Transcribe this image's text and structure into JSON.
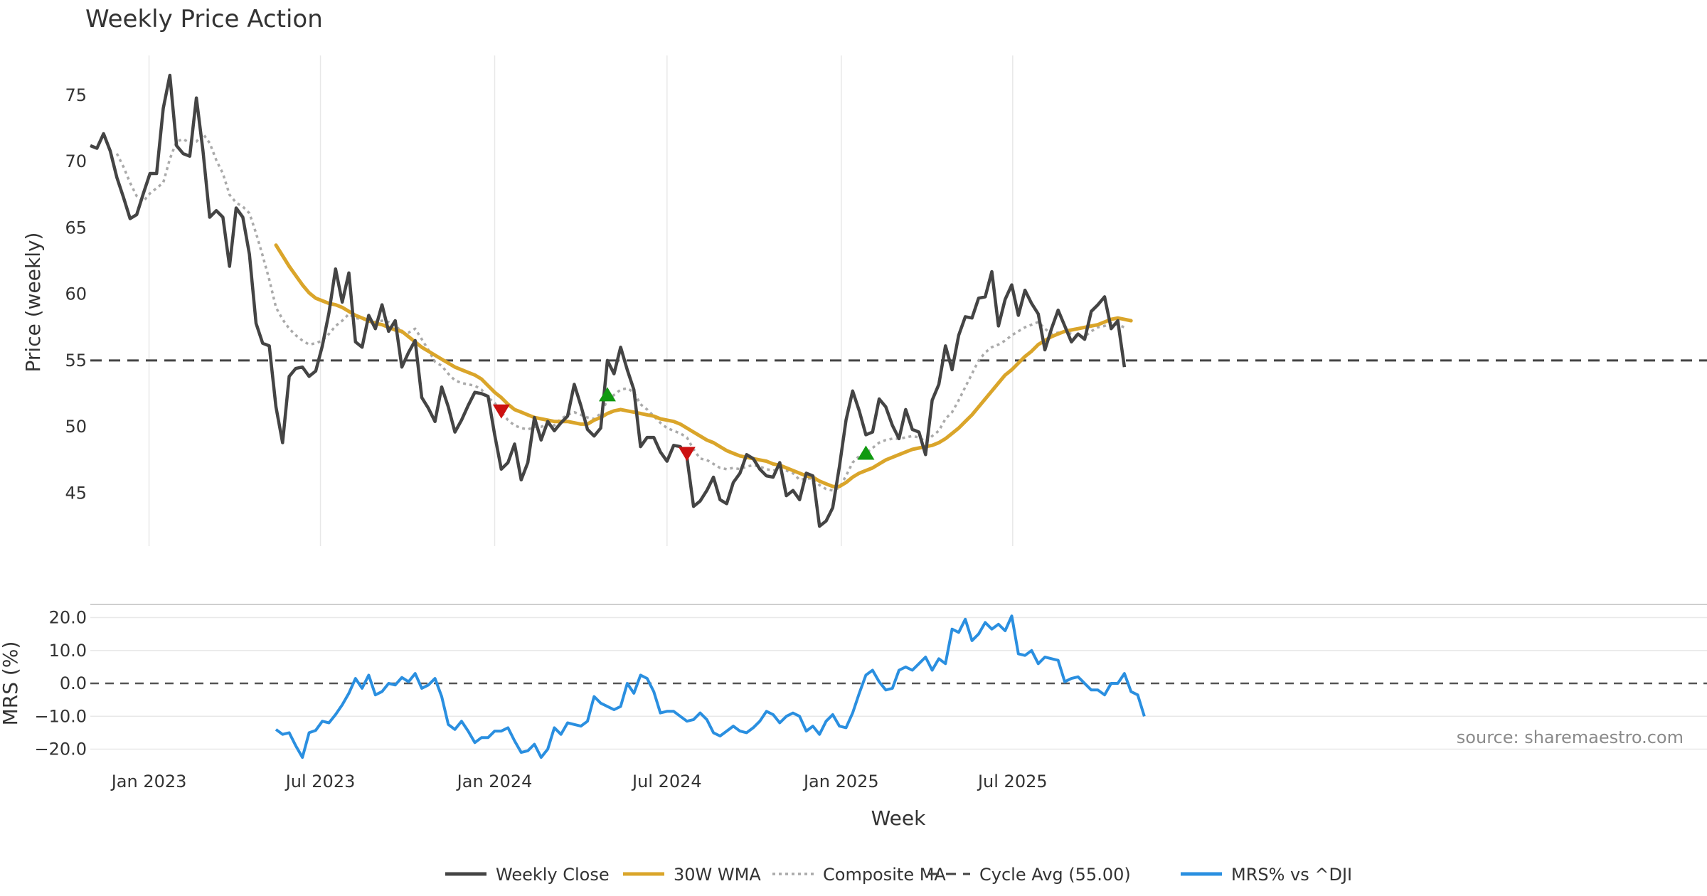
{
  "chart_data": {
    "type": "line",
    "title": "Weekly Price Action",
    "xlabel": "Week",
    "x_start": "2022-10-31",
    "x_ticks": [
      {
        "date": "2023-01-01",
        "label": "Jan 2023"
      },
      {
        "date": "2023-07-01",
        "label": "Jul 2023"
      },
      {
        "date": "2024-01-01",
        "label": "Jan 2024"
      },
      {
        "date": "2024-07-01",
        "label": "Jul 2024"
      },
      {
        "date": "2025-01-01",
        "label": "Jan 2025"
      },
      {
        "date": "2025-07-01",
        "label": "Jul 2025"
      }
    ],
    "price_panel": {
      "ylabel": "Price (weekly)",
      "ylim": [
        41,
        78
      ],
      "yticks": [
        45,
        50,
        55,
        60,
        65,
        70,
        75
      ],
      "ytick_labels": [
        "45",
        "50",
        "55",
        "60",
        "65",
        "70",
        "75"
      ],
      "cycle_avg": 55.0,
      "weekly_close": [
        71.2,
        71.0,
        72.1,
        70.8,
        68.8,
        67.3,
        65.7,
        66.0,
        67.6,
        69.1,
        69.1,
        74.0,
        76.5,
        71.2,
        70.6,
        70.4,
        74.8,
        70.8,
        65.8,
        66.3,
        65.8,
        62.1,
        66.5,
        65.8,
        63.0,
        57.8,
        56.3,
        56.1,
        51.5,
        48.8,
        53.8,
        54.4,
        54.5,
        53.8,
        54.2,
        56.1,
        58.6,
        61.9,
        59.4,
        61.6,
        56.4,
        56.0,
        58.4,
        57.4,
        59.2,
        57.2,
        58.0,
        54.5,
        55.6,
        56.5,
        52.2,
        51.4,
        50.4,
        53.0,
        51.5,
        49.6,
        50.5,
        51.6,
        52.6,
        52.5,
        52.3,
        49.4,
        46.8,
        47.3,
        48.7,
        46.0,
        47.3,
        50.7,
        49.0,
        50.4,
        49.7,
        50.3,
        50.8,
        53.2,
        51.6,
        49.8,
        49.3,
        49.9,
        55.0,
        54.0,
        56.0,
        54.3,
        52.8,
        48.5,
        49.2,
        49.2,
        48.1,
        47.4,
        48.6,
        48.5,
        47.7,
        44.0,
        44.4,
        45.2,
        46.2,
        44.5,
        44.2,
        45.8,
        46.5,
        47.9,
        47.6,
        46.8,
        46.3,
        46.2,
        47.3,
        44.8,
        45.2,
        44.5,
        46.5,
        46.3,
        42.5,
        42.9,
        43.9,
        47.0,
        50.5,
        52.7,
        51.2,
        49.4,
        49.6,
        52.1,
        51.5,
        50.1,
        49.1,
        51.3,
        49.8,
        49.6,
        47.9,
        52.0,
        53.2,
        56.1,
        54.3,
        56.9,
        58.3,
        58.2,
        59.7,
        59.8,
        61.7,
        57.6,
        59.6,
        60.7,
        58.4,
        60.3,
        59.3,
        58.5,
        55.8,
        57.4,
        58.8,
        57.6,
        56.4,
        57.0,
        56.6,
        58.7,
        59.2,
        59.8,
        57.4,
        58.0,
        54.5
      ],
      "wma_30": [
        null,
        null,
        null,
        null,
        null,
        null,
        null,
        null,
        null,
        null,
        null,
        null,
        null,
        null,
        null,
        null,
        null,
        null,
        null,
        null,
        null,
        null,
        null,
        null,
        null,
        null,
        null,
        null,
        63.7,
        62.9,
        62.1,
        61.4,
        60.7,
        60.1,
        59.7,
        59.5,
        59.3,
        59.2,
        59.0,
        58.7,
        58.4,
        58.2,
        58.0,
        57.8,
        57.7,
        57.5,
        57.3,
        57.2,
        56.8,
        56.4,
        56.0,
        55.7,
        55.4,
        55.1,
        54.8,
        54.5,
        54.3,
        54.1,
        53.9,
        53.6,
        53.1,
        52.6,
        52.2,
        51.7,
        51.3,
        51.1,
        50.9,
        50.7,
        50.6,
        50.5,
        50.4,
        50.4,
        50.4,
        50.3,
        50.2,
        50.2,
        50.5,
        50.7,
        51.0,
        51.2,
        51.3,
        51.2,
        51.1,
        51.0,
        50.9,
        50.8,
        50.6,
        50.5,
        50.4,
        50.2,
        49.9,
        49.6,
        49.3,
        49.0,
        48.8,
        48.5,
        48.2,
        48.0,
        47.8,
        47.7,
        47.6,
        47.5,
        47.4,
        47.2,
        47.1,
        46.9,
        46.7,
        46.5,
        46.3,
        46.2,
        45.9,
        45.7,
        45.5,
        45.5,
        45.8,
        46.2,
        46.5,
        46.7,
        46.9,
        47.2,
        47.5,
        47.7,
        47.9,
        48.1,
        48.3,
        48.4,
        48.5,
        48.6,
        48.8,
        49.1,
        49.5,
        49.9,
        50.4,
        50.9,
        51.5,
        52.1,
        52.7,
        53.3,
        53.9,
        54.3,
        54.8,
        55.3,
        55.7,
        56.2,
        56.5,
        56.8,
        57.0,
        57.2,
        57.3,
        57.4,
        57.5,
        57.6,
        57.7,
        57.9,
        58.1,
        58.2,
        58.1,
        58.0
      ],
      "composite_ma": [
        null,
        null,
        null,
        null,
        70.6,
        69.6,
        68.4,
        67.4,
        67.0,
        67.6,
        68.0,
        68.4,
        70.2,
        71.5,
        71.7,
        71.4,
        71.5,
        72.1,
        71.4,
        70.1,
        69.1,
        67.5,
        66.9,
        66.6,
        66.1,
        64.6,
        62.9,
        61.1,
        59.0,
        58.1,
        57.4,
        56.9,
        56.5,
        56.2,
        56.3,
        56.5,
        57.0,
        57.6,
        58.0,
        58.5,
        58.2,
        58.1,
        58.2,
        57.9,
        58.0,
        57.9,
        57.7,
        57.1,
        57.1,
        57.4,
        56.6,
        55.8,
        54.9,
        54.6,
        54.0,
        53.5,
        53.3,
        53.2,
        53.1,
        52.8,
        52.2,
        51.8,
        51.1,
        50.5,
        50.1,
        49.9,
        49.8,
        50.0,
        50.0,
        50.2,
        50.1,
        50.6,
        50.9,
        51.1,
        50.9,
        50.7,
        50.6,
        51.0,
        52.0,
        52.4,
        52.8,
        52.9,
        52.6,
        51.7,
        51.3,
        50.8,
        50.3,
        49.9,
        49.7,
        49.5,
        49.2,
        48.3,
        47.6,
        47.5,
        47.2,
        46.9,
        46.8,
        46.9,
        46.8,
        47.0,
        47.1,
        47.0,
        46.8,
        46.7,
        46.8,
        46.7,
        46.5,
        46.0,
        46.1,
        46.1,
        45.6,
        45.3,
        45.2,
        45.4,
        46.3,
        47.3,
        47.8,
        48.0,
        48.4,
        48.8,
        49.0,
        49.1,
        49.1,
        49.2,
        49.3,
        49.2,
        48.9,
        49.3,
        49.7,
        50.6,
        51.1,
        52.0,
        53.0,
        54.0,
        55.0,
        55.6,
        56.0,
        56.2,
        56.5,
        56.9,
        57.2,
        57.5,
        57.7,
        57.9,
        57.4,
        57.0,
        57.1,
        57.2,
        57.0,
        56.8,
        56.8,
        57.2,
        57.5,
        57.6,
        57.8,
        57.7,
        57.5
      ],
      "markers": [
        {
          "type": "sell",
          "index": 62,
          "value": 51.2,
          "color": "#cc1111"
        },
        {
          "type": "buy",
          "index": 78,
          "value": 52.4,
          "color": "#119911"
        },
        {
          "type": "sell",
          "index": 90,
          "value": 48.0,
          "color": "#cc1111"
        },
        {
          "type": "buy",
          "index": 117,
          "value": 48.0,
          "color": "#119911"
        }
      ]
    },
    "mrs_panel": {
      "ylabel": "MRS (%)",
      "ylim": [
        -24,
        24
      ],
      "yticks": [
        -20,
        -10,
        0,
        10,
        20
      ],
      "ytick_labels": [
        "−20.0",
        "−10.0",
        "0.0",
        "10.0",
        "20.0"
      ],
      "mrs": [
        null,
        null,
        null,
        null,
        null,
        null,
        null,
        null,
        null,
        null,
        null,
        null,
        null,
        null,
        null,
        null,
        null,
        null,
        null,
        null,
        null,
        null,
        null,
        null,
        null,
        null,
        null,
        null,
        -14.0,
        -15.5,
        -15.0,
        -19.0,
        -22.5,
        -15.0,
        -14.3,
        -11.5,
        -12.0,
        -9.5,
        -6.5,
        -3.0,
        1.5,
        -1.5,
        2.5,
        -3.5,
        -2.5,
        0.0,
        -0.5,
        1.8,
        0.5,
        3.0,
        -1.5,
        -0.5,
        1.5,
        -4.0,
        -12.5,
        -14.0,
        -11.5,
        -14.5,
        -18.0,
        -16.5,
        -16.5,
        -14.5,
        -14.5,
        -13.5,
        -17.5,
        -21.0,
        -20.5,
        -18.5,
        -22.5,
        -20.0,
        -13.5,
        -15.5,
        -12.0,
        -12.5,
        -13.0,
        -11.5,
        -4.0,
        -6.0,
        -7.0,
        -8.0,
        -7.0,
        0.0,
        -3.0,
        2.5,
        1.5,
        -2.5,
        -9.0,
        -8.5,
        -8.5,
        -10.0,
        -11.5,
        -11.0,
        -9.0,
        -11.0,
        -15.0,
        -16.0,
        -14.5,
        -13.0,
        -14.5,
        -15.0,
        -13.5,
        -11.5,
        -8.5,
        -9.5,
        -12.0,
        -10.0,
        -9.0,
        -10.0,
        -14.5,
        -13.0,
        -15.5,
        -11.5,
        -9.5,
        -13.0,
        -13.5,
        -9.0,
        -3.0,
        2.5,
        4.0,
        0.5,
        -2.0,
        -1.5,
        4.0,
        5.0,
        4.0,
        6.0,
        8.0,
        4.0,
        7.5,
        6.0,
        16.5,
        15.5,
        19.5,
        13.0,
        15.0,
        18.5,
        16.5,
        18.0,
        16.0,
        20.5,
        9.0,
        8.5,
        10.0,
        6.0,
        8.0,
        7.5,
        7.0,
        0.5,
        1.5,
        2.0,
        0.0,
        -2.0,
        -2.0,
        -3.5,
        0.0,
        0.0,
        3.0,
        -2.5,
        -3.5,
        -10.0
      ]
    },
    "legend": [
      {
        "label": "Weekly Close",
        "color": "#444444",
        "style": "solid"
      },
      {
        "label": "30W WMA",
        "color": "#daa52a",
        "style": "solid"
      },
      {
        "label": "Composite MA",
        "color": "#aaaaaa",
        "style": "dotted"
      },
      {
        "label": "Cycle Avg (55.00)",
        "color": "#444444",
        "style": "dashed"
      },
      {
        "label": "MRS% vs ^DJI",
        "color": "#2a8fe0",
        "style": "solid"
      }
    ],
    "legend_position": "bottom-center",
    "grid": true,
    "source_note": "source: sharemaestro.com"
  },
  "colors": {
    "close": "#444444",
    "wma": "#daa52a",
    "composite": "#aaaaaa",
    "cycle": "#444444",
    "mrs": "#2a8fe0",
    "grid": "#e8e8e8",
    "zero_line": "#555555"
  }
}
